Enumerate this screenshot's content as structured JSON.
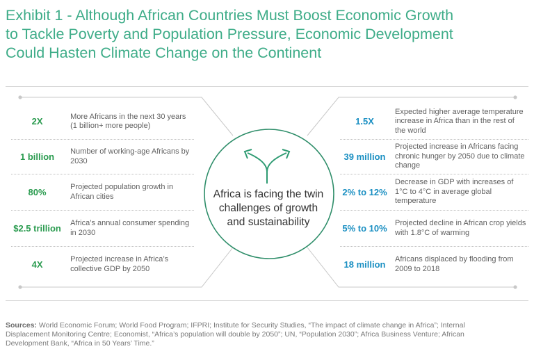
{
  "title_lines": [
    "Exhibit 1 - Although African Countries Must Boost Economic Growth",
    "to Tackle Poverty and Population Pressure, Economic Development",
    "Could Hasten Climate Change on the Continent"
  ],
  "center": {
    "lines": [
      "Africa is facing the twin",
      "challenges of growth",
      "and sustainability"
    ]
  },
  "growth_facts": [
    {
      "stat": "2X",
      "desc": "More Africans in the next 30 years (1 billion+ more people)"
    },
    {
      "stat": "1 billion",
      "desc": "Number of working-age Africans by 2030"
    },
    {
      "stat": "80%",
      "desc": "Projected population growth in African cities"
    },
    {
      "stat": "$2.5 trillion",
      "desc": "Africa’s annual consumer spending in 2030"
    },
    {
      "stat": "4X",
      "desc": "Projected increase in Africa’s collective GDP by 2050"
    }
  ],
  "climate_facts": [
    {
      "stat": "1.5X",
      "desc": "Expected higher average temperature increase in Africa than in the rest of the world"
    },
    {
      "stat": "39 million",
      "desc": "Projected increase in Africans facing chronic hunger by 2050 due to climate change"
    },
    {
      "stat": "2% to 12%",
      "desc": "Decrease in GDP with increases of 1°C  to  4°C in average global temperature"
    },
    {
      "stat": "5% to 10%",
      "desc": "Projected decline in African crop yields with 1.8°C of warming"
    },
    {
      "stat": "18 million",
      "desc": "Africans displaced by flooding from 2009 to 2018"
    }
  ],
  "sources": {
    "label": "Sources:",
    "line1": " World Economic Forum; World Food Program; IFPRI; Institute for Security Studies, “The impact of climate change in Africa”; Internal",
    "line2": "Displacement Monitoring Centre; Economist, “Africa’s population will double by 2050”; UN, “Population 2030”; Africa Business Venture; African",
    "line3": "Development Bank, “Africa in 50 Years’ Time.”"
  },
  "colors": {
    "title": "#3eac88",
    "growth_stat": "#2a9b4f",
    "climate_stat": "#1a8fc2",
    "circle": "#2f8e6a",
    "arrows": "#2e9b72",
    "rules": "#c8c8c8"
  }
}
